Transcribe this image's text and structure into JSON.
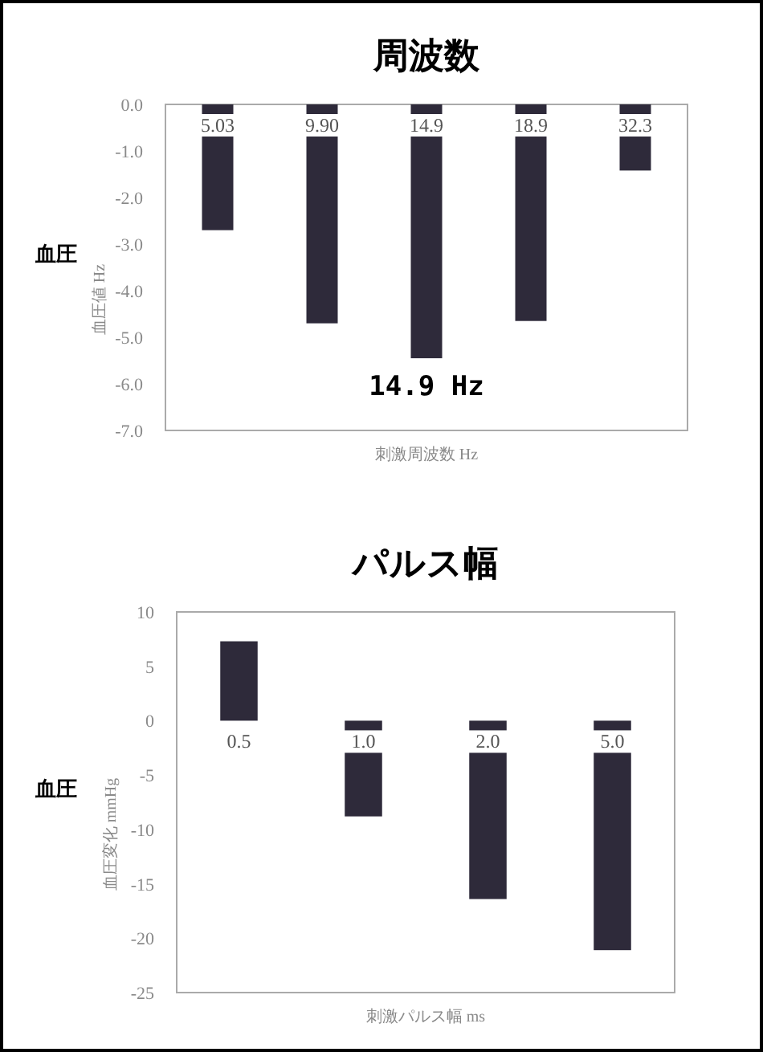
{
  "chart_data": [
    {
      "type": "bar",
      "title": "周波数",
      "xlabel": "刺激周波数 Hz",
      "ylabel": "血圧値 Hz",
      "categories": [
        "5.03",
        "9.90",
        "14.9",
        "18.9",
        "32.3"
      ],
      "values": [
        -2.7,
        -4.7,
        -5.45,
        -4.65,
        -1.42
      ],
      "color": "#2e2a3a",
      "ylim": [
        -7,
        0
      ],
      "yticks": [
        {
          "value": 0,
          "label": "0.0"
        },
        {
          "value": -1,
          "label": "-1.0"
        },
        {
          "value": -2,
          "label": "-2.0"
        },
        {
          "value": -3,
          "label": "-3.0"
        },
        {
          "value": -4,
          "label": "-4.0"
        },
        {
          "value": -5,
          "label": "-5.0"
        },
        {
          "value": -6,
          "label": "-6.0"
        },
        {
          "value": -7,
          "label": "-7.0"
        }
      ],
      "annotations": [
        "血圧",
        "14.9 Hz"
      ]
    },
    {
      "type": "bar",
      "title": "パルス幅",
      "xlabel": "刺激パルス幅 ms",
      "ylabel": "血圧変化 mmHg",
      "categories": [
        "0.5",
        "1.0",
        "2.0",
        "5.0"
      ],
      "values": [
        7.3,
        -8.8,
        -16.4,
        -21.1
      ],
      "color": "#2e2a3a",
      "ylim": [
        -25,
        10
      ],
      "yticks": [
        10,
        5,
        0,
        -5,
        -10,
        -15,
        -20,
        -25
      ],
      "annotations": [
        "血圧"
      ]
    }
  ]
}
